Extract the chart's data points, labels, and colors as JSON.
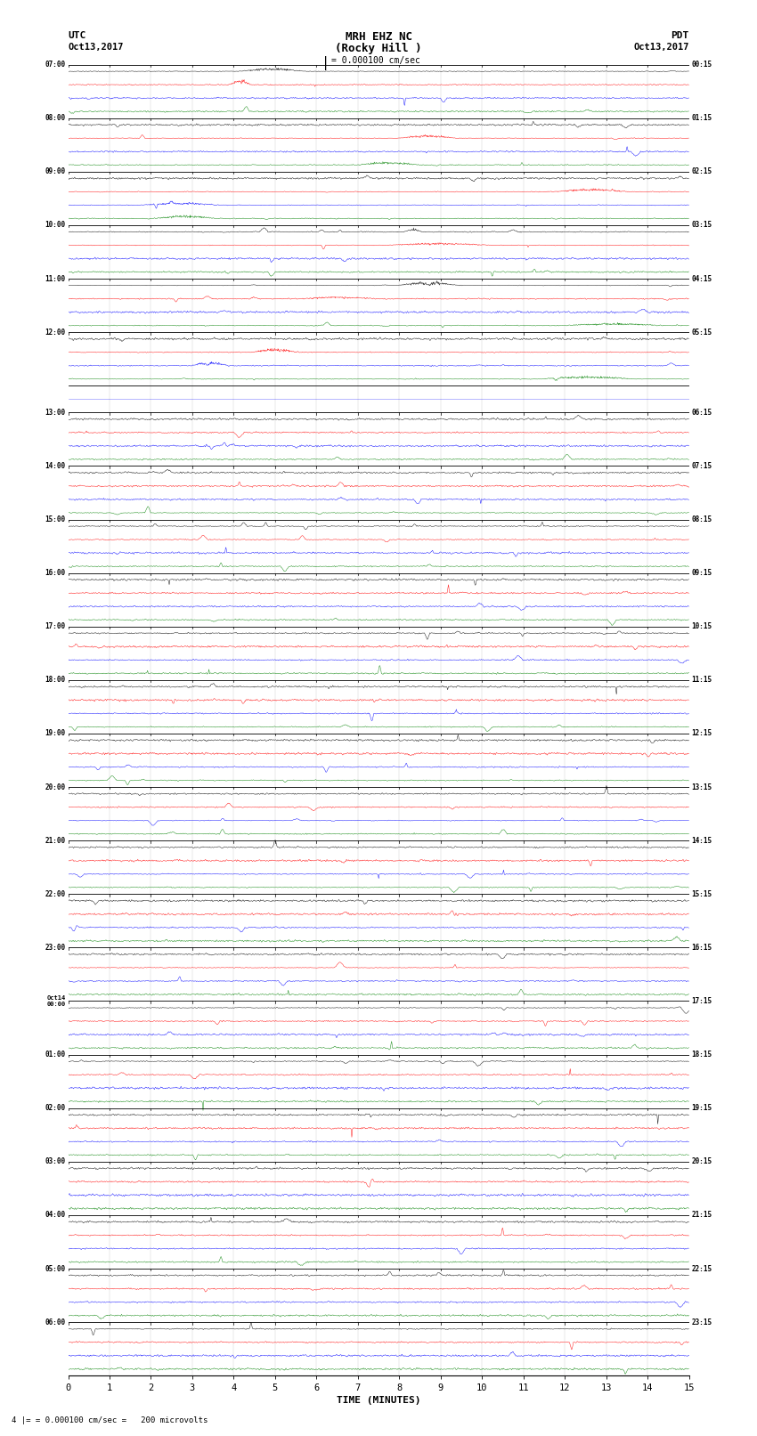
{
  "title_line1": "MRH EHZ NC",
  "title_line2": "(Rocky Hill )",
  "scale_label": "= 0.000100 cm/sec",
  "bottom_label": "= 0.000100 cm/sec =   200 microvolts",
  "left_header": "UTC",
  "left_date": "Oct13,2017",
  "right_header": "PDT",
  "right_date": "Oct13,2017",
  "xlabel": "TIME (MINUTES)",
  "xmin": 0,
  "xmax": 15,
  "xticks": [
    0,
    1,
    2,
    3,
    4,
    5,
    6,
    7,
    8,
    9,
    10,
    11,
    12,
    13,
    14,
    15
  ],
  "background_color": "#ffffff",
  "trace_colors": [
    "black",
    "red",
    "blue",
    "green"
  ],
  "seed": 42,
  "fig_width": 8.5,
  "fig_height": 16.13
}
